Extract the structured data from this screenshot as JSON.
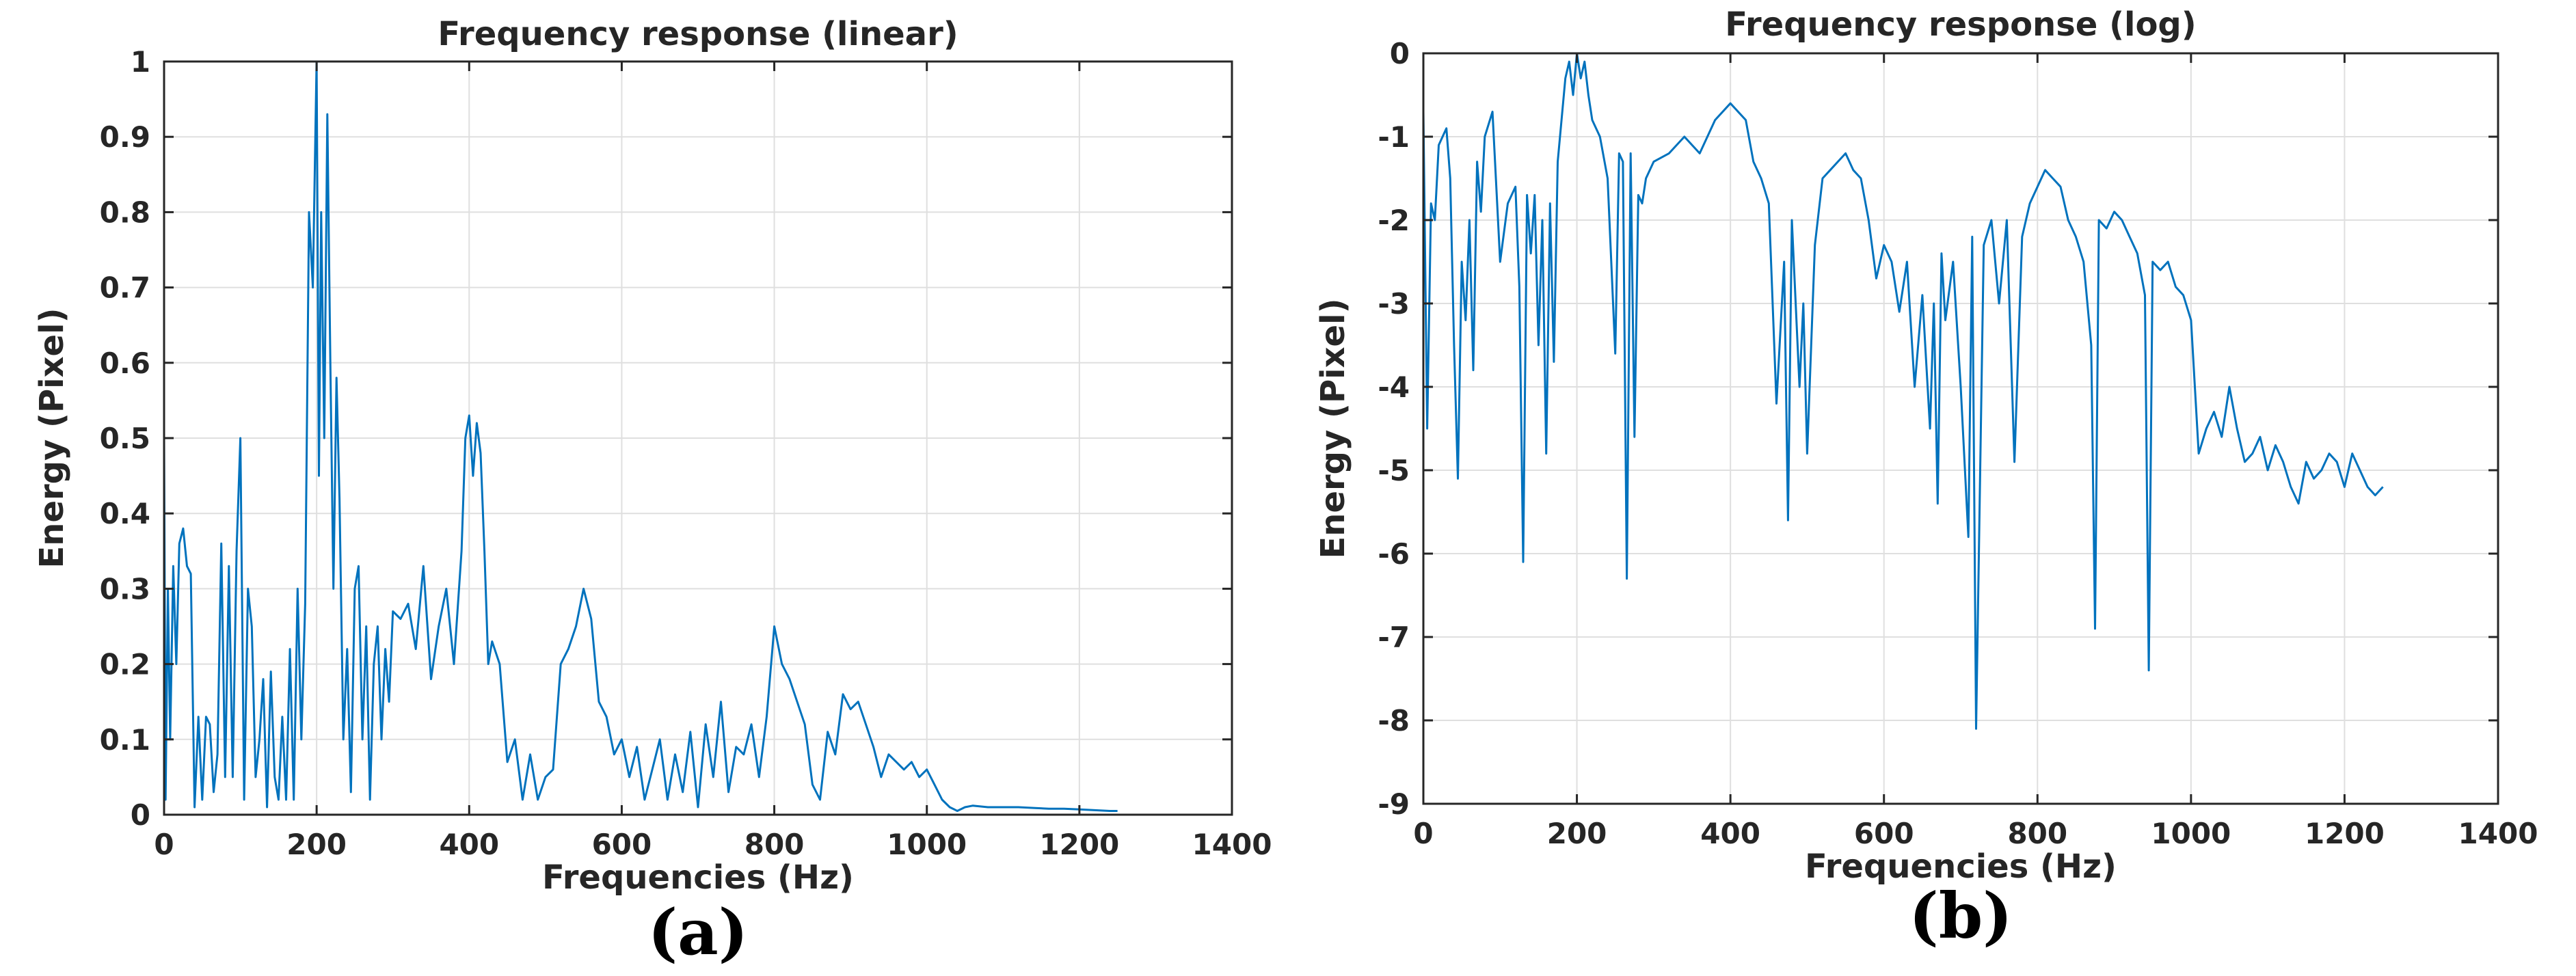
{
  "colors": {
    "series": "#0072BD",
    "axis": "#262626",
    "grid": "#dfdfdf"
  },
  "chart_data": [
    {
      "id": "linear",
      "type": "line",
      "title": "Frequency response (linear)",
      "xlabel": "Frequencies (Hz)",
      "ylabel": "Energy (Pixel)",
      "panel_label": "(a)",
      "xlim": [
        0,
        1400
      ],
      "ylim": [
        0,
        1
      ],
      "xticks": [
        0,
        200,
        400,
        600,
        800,
        1000,
        1200,
        1400
      ],
      "yticks": [
        0,
        0.1,
        0.2,
        0.3,
        0.4,
        0.5,
        0.6,
        0.7,
        0.8,
        0.9,
        1
      ],
      "ytick_labels": [
        "0",
        "0.1",
        "0.2",
        "0.3",
        "0.4",
        "0.5",
        "0.6",
        "0.7",
        "0.8",
        "0.9",
        "1"
      ],
      "grid": true,
      "series": [
        {
          "x": [
            0,
            2,
            5,
            8,
            12,
            16,
            20,
            25,
            30,
            35,
            40,
            45,
            50,
            55,
            60,
            65,
            70,
            75,
            80,
            85,
            90,
            95,
            100,
            105,
            110,
            115,
            120,
            125,
            130,
            135,
            140,
            145,
            150,
            155,
            160,
            165,
            170,
            175,
            180,
            185,
            190,
            195,
            200,
            203,
            206,
            210,
            214,
            218,
            222,
            226,
            230,
            235,
            240,
            245,
            250,
            255,
            260,
            265,
            270,
            275,
            280,
            285,
            290,
            295,
            300,
            310,
            320,
            330,
            340,
            350,
            360,
            370,
            380,
            390,
            395,
            400,
            405,
            410,
            415,
            420,
            425,
            430,
            440,
            450,
            460,
            470,
            480,
            490,
            500,
            510,
            520,
            530,
            540,
            550,
            560,
            570,
            580,
            590,
            600,
            610,
            620,
            630,
            640,
            650,
            660,
            670,
            680,
            690,
            700,
            710,
            720,
            730,
            740,
            750,
            760,
            770,
            780,
            790,
            800,
            810,
            820,
            830,
            840,
            850,
            860,
            870,
            880,
            890,
            900,
            910,
            920,
            930,
            940,
            950,
            960,
            970,
            980,
            990,
            1000,
            1010,
            1020,
            1030,
            1040,
            1050,
            1060,
            1080,
            1100,
            1120,
            1140,
            1160,
            1180,
            1200,
            1220,
            1240,
            1250
          ],
          "y": [
            0.5,
            0.02,
            0.3,
            0.1,
            0.33,
            0.2,
            0.36,
            0.38,
            0.33,
            0.32,
            0.01,
            0.13,
            0.02,
            0.13,
            0.12,
            0.03,
            0.08,
            0.36,
            0.05,
            0.33,
            0.05,
            0.35,
            0.5,
            0.02,
            0.3,
            0.25,
            0.05,
            0.1,
            0.18,
            0.01,
            0.19,
            0.05,
            0.02,
            0.13,
            0.02,
            0.22,
            0.02,
            0.3,
            0.1,
            0.28,
            0.8,
            0.7,
            1.0,
            0.45,
            0.8,
            0.5,
            0.93,
            0.6,
            0.3,
            0.58,
            0.42,
            0.1,
            0.22,
            0.03,
            0.3,
            0.33,
            0.1,
            0.25,
            0.02,
            0.2,
            0.25,
            0.1,
            0.22,
            0.15,
            0.27,
            0.26,
            0.28,
            0.22,
            0.33,
            0.18,
            0.25,
            0.3,
            0.2,
            0.35,
            0.5,
            0.53,
            0.45,
            0.52,
            0.48,
            0.35,
            0.2,
            0.23,
            0.2,
            0.07,
            0.1,
            0.02,
            0.08,
            0.02,
            0.05,
            0.06,
            0.2,
            0.22,
            0.25,
            0.3,
            0.26,
            0.15,
            0.13,
            0.08,
            0.1,
            0.05,
            0.09,
            0.02,
            0.06,
            0.1,
            0.02,
            0.08,
            0.03,
            0.11,
            0.01,
            0.12,
            0.05,
            0.15,
            0.03,
            0.09,
            0.08,
            0.12,
            0.05,
            0.13,
            0.25,
            0.2,
            0.18,
            0.15,
            0.12,
            0.04,
            0.02,
            0.11,
            0.08,
            0.16,
            0.14,
            0.15,
            0.12,
            0.09,
            0.05,
            0.08,
            0.07,
            0.06,
            0.07,
            0.05,
            0.06,
            0.04,
            0.02,
            0.01,
            0.005,
            0.01,
            0.012,
            0.01,
            0.01,
            0.01,
            0.009,
            0.008,
            0.008,
            0.007,
            0.006,
            0.005,
            0.005
          ]
        }
      ]
    },
    {
      "id": "log",
      "type": "line",
      "title": "Frequency response (log)",
      "xlabel": "Frequencies (Hz)",
      "ylabel": "Energy (Pixel)",
      "panel_label": "(b)",
      "xlim": [
        0,
        1400
      ],
      "ylim": [
        -9,
        0
      ],
      "xticks": [
        0,
        200,
        400,
        600,
        800,
        1000,
        1200,
        1400
      ],
      "yticks": [
        0,
        -1,
        -2,
        -3,
        -4,
        -5,
        -6,
        -7,
        -8,
        -9
      ],
      "ytick_labels": [
        "0",
        "-1",
        "-2",
        "-3",
        "-4",
        "-5",
        "-6",
        "-7",
        "-8",
        "-9"
      ],
      "grid": true,
      "series": [
        {
          "x": [
            0,
            5,
            10,
            15,
            20,
            25,
            30,
            35,
            40,
            45,
            50,
            55,
            60,
            65,
            70,
            75,
            80,
            90,
            100,
            110,
            120,
            125,
            130,
            135,
            140,
            145,
            150,
            155,
            160,
            165,
            170,
            175,
            180,
            185,
            190,
            195,
            200,
            205,
            210,
            215,
            220,
            230,
            240,
            250,
            255,
            260,
            265,
            270,
            275,
            280,
            285,
            290,
            300,
            320,
            340,
            360,
            380,
            400,
            420,
            430,
            440,
            450,
            460,
            470,
            475,
            480,
            490,
            495,
            500,
            510,
            520,
            530,
            540,
            550,
            560,
            570,
            580,
            590,
            600,
            610,
            620,
            630,
            640,
            650,
            660,
            665,
            670,
            675,
            680,
            690,
            700,
            710,
            715,
            720,
            730,
            740,
            750,
            760,
            770,
            780,
            790,
            800,
            810,
            820,
            830,
            840,
            850,
            860,
            870,
            875,
            880,
            890,
            900,
            910,
            920,
            930,
            940,
            945,
            950,
            960,
            970,
            980,
            990,
            1000,
            1010,
            1020,
            1030,
            1040,
            1050,
            1060,
            1070,
            1080,
            1090,
            1100,
            1110,
            1120,
            1130,
            1140,
            1150,
            1160,
            1170,
            1180,
            1190,
            1200,
            1210,
            1220,
            1230,
            1240,
            1250
          ],
          "y": [
            -0.7,
            -4.5,
            -1.8,
            -2.0,
            -1.1,
            -1.0,
            -0.9,
            -1.5,
            -3.5,
            -5.1,
            -2.5,
            -3.2,
            -2.0,
            -3.8,
            -1.3,
            -1.9,
            -1.0,
            -0.7,
            -2.5,
            -1.8,
            -1.6,
            -2.8,
            -6.1,
            -1.7,
            -2.4,
            -1.7,
            -3.5,
            -2.0,
            -4.8,
            -1.8,
            -3.7,
            -1.3,
            -0.8,
            -0.3,
            -0.1,
            -0.5,
            0.0,
            -0.3,
            -0.1,
            -0.5,
            -0.8,
            -1.0,
            -1.5,
            -3.6,
            -1.2,
            -1.3,
            -6.3,
            -1.2,
            -4.6,
            -1.7,
            -1.8,
            -1.5,
            -1.3,
            -1.2,
            -1.0,
            -1.2,
            -0.8,
            -0.6,
            -0.8,
            -1.3,
            -1.5,
            -1.8,
            -4.2,
            -2.5,
            -5.6,
            -2.0,
            -4.0,
            -3.0,
            -4.8,
            -2.3,
            -1.5,
            -1.4,
            -1.3,
            -1.2,
            -1.4,
            -1.5,
            -2.0,
            -2.7,
            -2.3,
            -2.5,
            -3.1,
            -2.5,
            -4.0,
            -2.9,
            -4.5,
            -3.0,
            -5.4,
            -2.4,
            -3.2,
            -2.5,
            -4.0,
            -5.8,
            -2.2,
            -8.1,
            -2.3,
            -2.0,
            -3.0,
            -2.0,
            -4.9,
            -2.2,
            -1.8,
            -1.6,
            -1.4,
            -1.5,
            -1.6,
            -2.0,
            -2.2,
            -2.5,
            -3.5,
            -6.9,
            -2.0,
            -2.1,
            -1.9,
            -2.0,
            -2.2,
            -2.4,
            -2.9,
            -7.4,
            -2.5,
            -2.6,
            -2.5,
            -2.8,
            -2.9,
            -3.2,
            -4.8,
            -4.5,
            -4.3,
            -4.6,
            -4.0,
            -4.5,
            -4.9,
            -4.8,
            -4.6,
            -5.0,
            -4.7,
            -4.9,
            -5.2,
            -5.4,
            -4.9,
            -5.1,
            -5.0,
            -4.8,
            -4.9,
            -5.2,
            -4.8,
            -5.0,
            -5.2,
            -5.3,
            -5.2
          ]
        }
      ]
    }
  ]
}
